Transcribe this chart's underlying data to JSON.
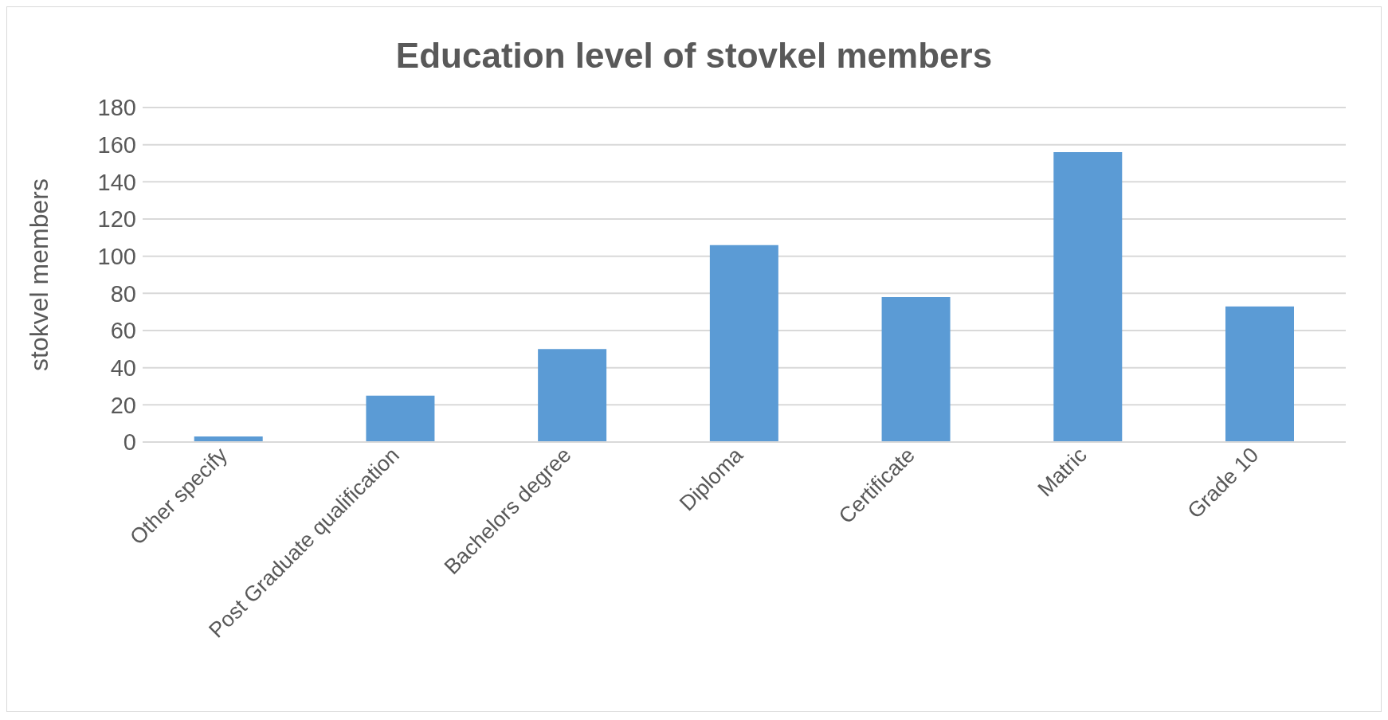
{
  "chart_data": {
    "type": "bar",
    "title": "Education level of stovkel members",
    "ylabel": "stokvel members",
    "categories": [
      "Other specify",
      "Post Graduate qualification",
      "Bachelors degree",
      "Diploma",
      "Certificate",
      "Matric",
      "Grade 10"
    ],
    "values": [
      3,
      25,
      50,
      106,
      78,
      156,
      73
    ],
    "color": "#5b9bd5",
    "ylim": [
      0,
      180
    ],
    "yticks": [
      0,
      20,
      40,
      60,
      80,
      100,
      120,
      140,
      160,
      180
    ],
    "grid": "y"
  }
}
